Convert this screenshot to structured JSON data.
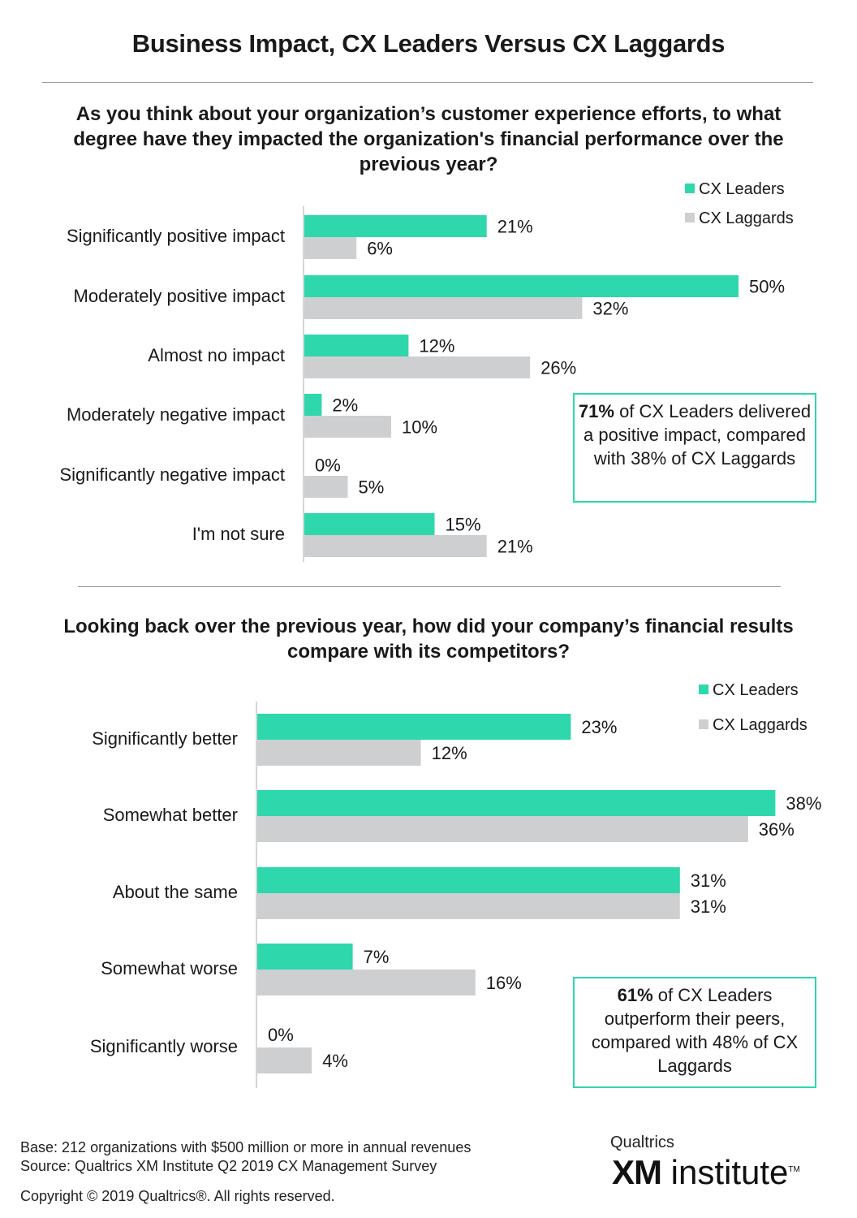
{
  "title": "Business Impact, CX Leaders Versus CX Laggards",
  "colors": {
    "leaders": "#2ed7ac",
    "laggards": "#cdcfd1",
    "callout_border": "#2ed7ac"
  },
  "legend": {
    "leaders": "CX Leaders",
    "laggards": "CX Laggards"
  },
  "chart_data": [
    {
      "type": "bar",
      "title": "As you think about your organization’s customer experience efforts, to what degree have they impacted the organization's financial performance over the previous year?",
      "categories": [
        "Significantly positive impact",
        "Moderately positive impact",
        "Almost no impact",
        "Moderately negative impact",
        "Significantly negative impact",
        "I'm not sure"
      ],
      "series": [
        {
          "name": "CX Leaders",
          "values": [
            21,
            50,
            12,
            2,
            0,
            15
          ]
        },
        {
          "name": "CX Laggards",
          "values": [
            6,
            32,
            26,
            10,
            5,
            21
          ]
        }
      ],
      "unit": "%",
      "orientation": "horizontal",
      "legend_position": "top-right",
      "callout": {
        "bold": "71%",
        "rest": " of CX Leaders delivered a positive impact, compared with 38% of CX Laggards"
      }
    },
    {
      "type": "bar",
      "title": "Looking back over the previous year, how did your company’s financial results compare with its competitors?",
      "categories": [
        "Significantly better",
        "Somewhat better",
        "About the same",
        "Somewhat worse",
        "Significantly worse"
      ],
      "series": [
        {
          "name": "CX Leaders",
          "values": [
            23,
            38,
            31,
            7,
            0
          ]
        },
        {
          "name": "CX Laggards",
          "values": [
            12,
            36,
            31,
            16,
            4
          ]
        }
      ],
      "unit": "%",
      "orientation": "horizontal",
      "legend_position": "top-right",
      "callout": {
        "bold": "61%",
        "rest": " of CX Leaders outperform their peers, compared with 48% of CX Laggards"
      }
    }
  ],
  "footer": {
    "base": "Base: 212 organizations with $500 million or more in annual revenues",
    "source": "Source: Qualtrics XM Institute Q2 2019 CX Management Survey",
    "copyright": "Copyright © 2019 Qualtrics®.  All rights reserved."
  },
  "logo": {
    "top": "Qualtrics",
    "xm": "XM",
    "word": "institute",
    "tm": "TM"
  }
}
